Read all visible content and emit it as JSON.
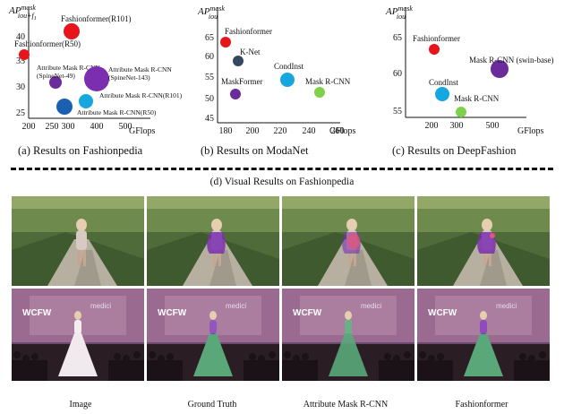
{
  "chart_data": [
    {
      "type": "scatter",
      "ylabel_main": "AP",
      "ylabel_sup": "mask",
      "ylabel_sub": "iou+f",
      "ylabel_sub2": "1",
      "xlabel": "",
      "yticks": [
        "25",
        "30",
        "35",
        "40"
      ],
      "xticks": [
        "200",
        "250",
        "300",
        "400",
        "500"
      ],
      "caption": "(a)  Results on Fashionpedia",
      "points": [
        {
          "label": "Fashionformer(R101)",
          "color": "#e8141c"
        },
        {
          "label": "Fashionformer(R50)",
          "color": "#e8141c"
        },
        {
          "label": "Attribute Mask R-CNN\n(SpineNet-49)",
          "color": "#6a2c9a"
        },
        {
          "label": "Attribute Mask R-CNN\n(SpineNet-143)",
          "color": "#7b2fb0"
        },
        {
          "label": "Attribute Mask R-CNN(R101)",
          "color": "#16a6e0"
        },
        {
          "label": "Attribute Mask R-CNN(R50)",
          "color": "#1a5fb0"
        }
      ]
    },
    {
      "type": "scatter",
      "ylabel_main": "AP",
      "ylabel_sup": "mask",
      "ylabel_sub": "iou",
      "xlabel": "GFlops",
      "yticks": [
        "45",
        "50",
        "55",
        "60",
        "65"
      ],
      "xticks": [
        "180",
        "200",
        "220",
        "240",
        "260"
      ],
      "caption": "(b)  Results on ModaNet",
      "points": [
        {
          "label": "Fashionformer",
          "color": "#e8141c"
        },
        {
          "label": "K-Net",
          "color": "#34495e"
        },
        {
          "label": "MaskFormer",
          "color": "#6a2c9a"
        },
        {
          "label": "CondInst",
          "color": "#16a6e0"
        },
        {
          "label": "Mask R-CNN",
          "color": "#7fd04a"
        }
      ]
    },
    {
      "type": "scatter",
      "ylabel_main": "AP",
      "ylabel_sup": "mask",
      "ylabel_sub": "iou",
      "xlabel": "GFlops",
      "yticks": [
        "55",
        "60",
        "65"
      ],
      "xticks": [
        "200",
        "300",
        "500"
      ],
      "caption": "(c)  Results on DeepFashion",
      "points": [
        {
          "label": "Fashionformer",
          "color": "#e8141c"
        },
        {
          "label": "Mask R-CNN (swin-base)",
          "color": "#6a2c9a"
        },
        {
          "label": "CondInst",
          "color": "#16a6e0"
        },
        {
          "label": "Mask R-CNN",
          "color": "#7fd04a"
        }
      ]
    }
  ],
  "first_xlabel": "GFlops",
  "visual_caption": "(d) Visual Results on Fashionpedia",
  "column_labels": [
    "Image",
    "Ground Truth",
    "Attribute Mask R-CNN",
    "Fashionformer"
  ],
  "watermark_logo": "WCFW",
  "watermark_text": "medici",
  "colors": {
    "fashionformer": "#e8141c",
    "attr_purple": "#7b2fb0",
    "overlay_green": "#5aa87a",
    "overlay_pink": "#e0557a"
  }
}
